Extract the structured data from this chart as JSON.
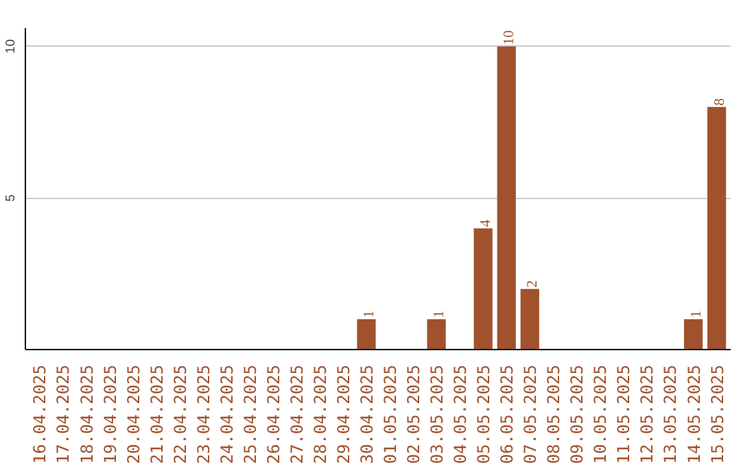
{
  "chart_data": {
    "type": "bar",
    "categories": [
      "16.04.2025",
      "17.04.2025",
      "18.04.2025",
      "19.04.2025",
      "20.04.2025",
      "21.04.2025",
      "22.04.2025",
      "23.04.2025",
      "24.04.2025",
      "25.04.2025",
      "26.04.2025",
      "27.04.2025",
      "28.04.2025",
      "29.04.2025",
      "30.04.2025",
      "01.05.2025",
      "02.05.2025",
      "03.05.2025",
      "04.05.2025",
      "05.05.2025",
      "06.05.2025",
      "07.05.2025",
      "08.05.2025",
      "09.05.2025",
      "10.05.2025",
      "11.05.2025",
      "12.05.2025",
      "13.05.2025",
      "14.05.2025",
      "15.05.2025"
    ],
    "values": [
      0,
      0,
      0,
      0,
      0,
      0,
      0,
      0,
      0,
      0,
      0,
      0,
      0,
      0,
      1,
      0,
      0,
      1,
      0,
      4,
      10,
      2,
      0,
      0,
      0,
      0,
      0,
      0,
      1,
      8
    ],
    "value_labels": [
      null,
      null,
      null,
      null,
      null,
      null,
      null,
      null,
      null,
      null,
      null,
      null,
      null,
      null,
      "1",
      null,
      null,
      "1",
      null,
      "4",
      "10",
      "2",
      null,
      null,
      null,
      null,
      null,
      null,
      "1",
      "8"
    ],
    "color": "#a0522d",
    "ylim": [
      0,
      10.6
    ],
    "yticks": [
      5,
      10
    ],
    "grid": "y"
  }
}
